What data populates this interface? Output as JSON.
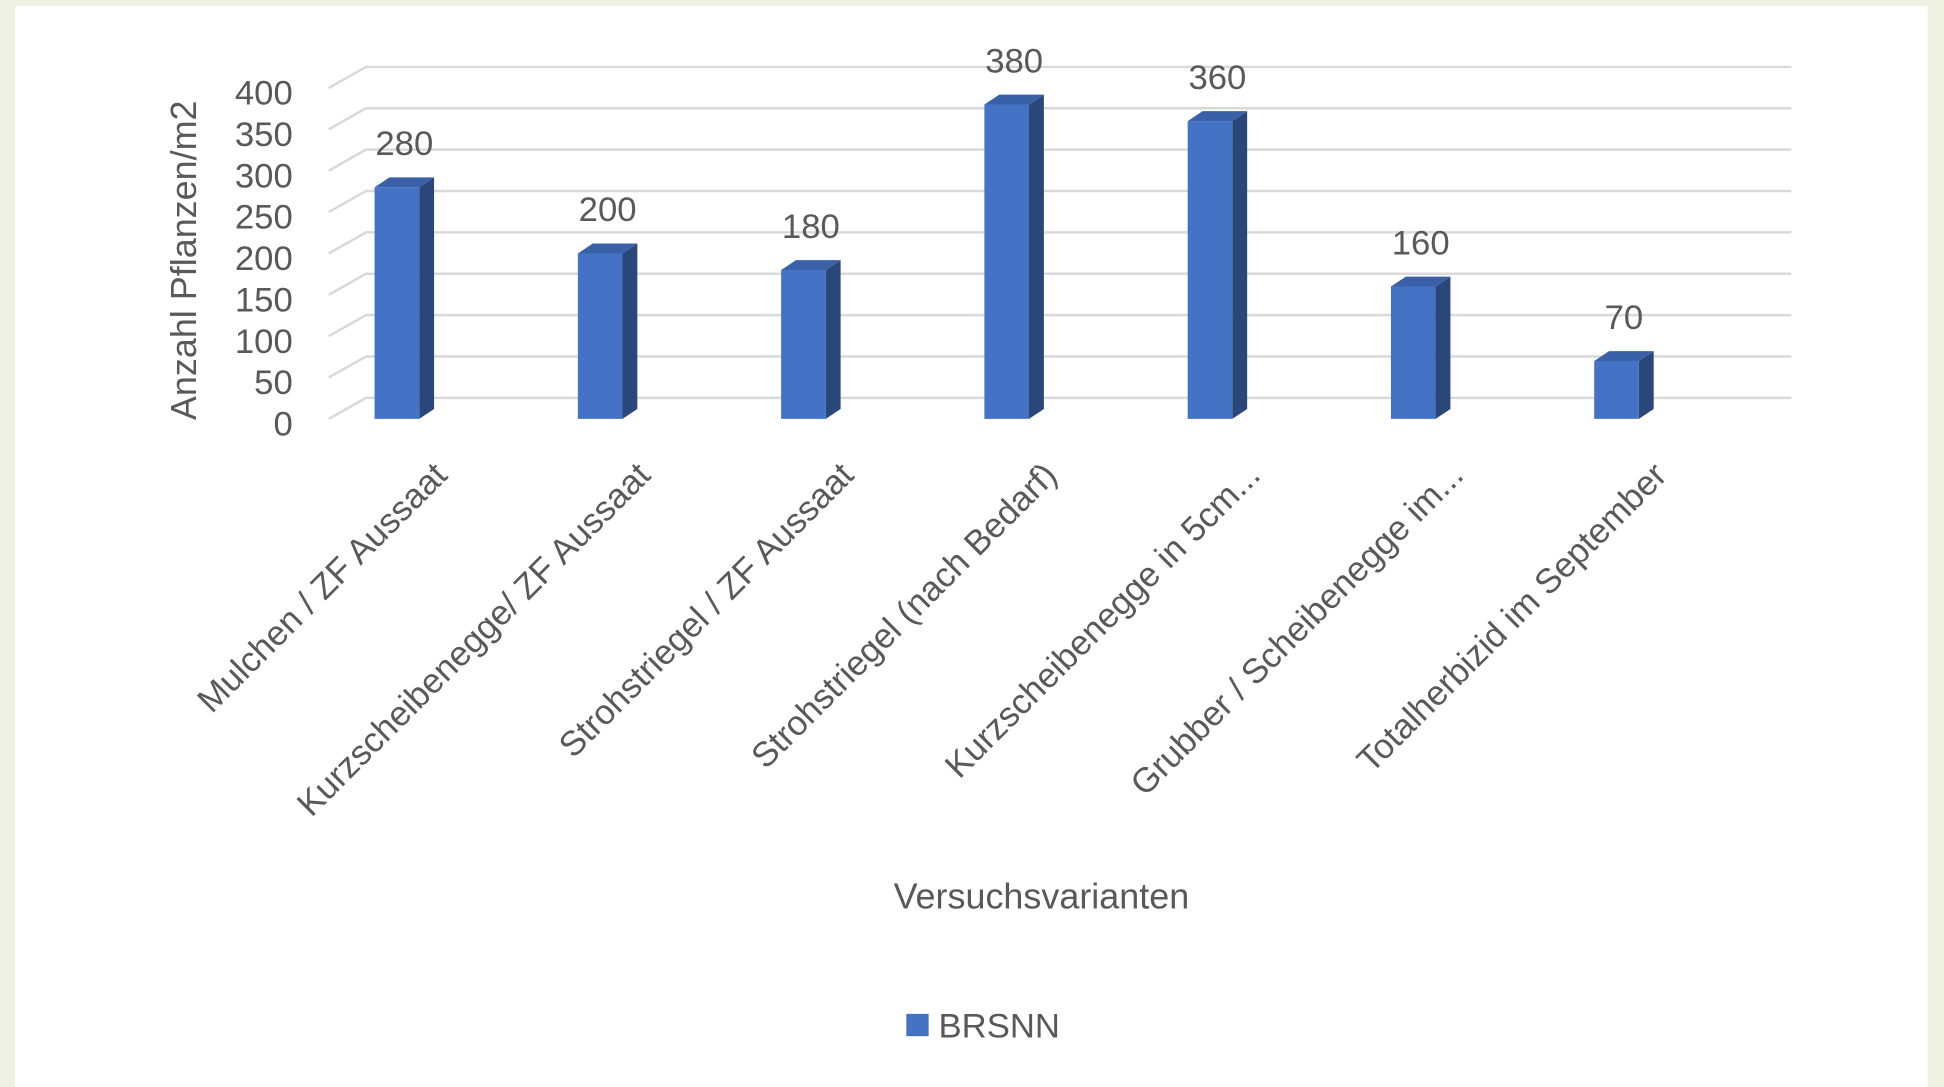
{
  "chart_data": {
    "type": "bar3d",
    "categories": [
      "Mulchen / ZF Aussaat",
      "Kurzscheibenegge/ ZF Aussaat",
      "Strohstriegel / ZF Aussaat",
      "Strohstriegel (nach Bedarf)",
      "Kurzscheibenegge in 5cm...",
      "Grubber / Scheibenegge im...",
      "Totalherbizid im September"
    ],
    "series": [
      {
        "name": "BRSNN",
        "color": "#4472c4",
        "values": [
          280,
          200,
          180,
          380,
          360,
          160,
          70
        ]
      }
    ],
    "ylabel": "Anzahl Pflanzen/m2",
    "xlabel": "Versuchsvarianten",
    "ylim": [
      0,
      400
    ],
    "yticks": [
      0,
      50,
      100,
      150,
      200,
      250,
      300,
      350,
      400
    ],
    "grid": true,
    "legend": "bottom"
  }
}
